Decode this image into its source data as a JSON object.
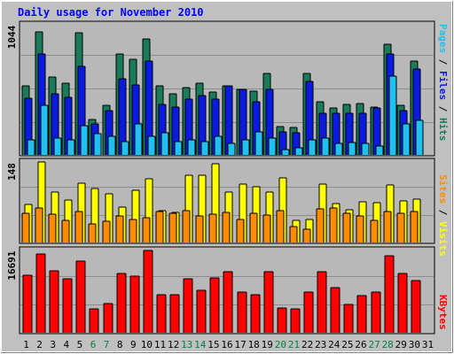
{
  "chart_data": {
    "type": "bar",
    "title": "Daily usage for November 2010",
    "categories": [
      "1",
      "2",
      "3",
      "4",
      "5",
      "6",
      "7",
      "8",
      "9",
      "10",
      "11",
      "12",
      "13",
      "14",
      "15",
      "16",
      "17",
      "18",
      "19",
      "20",
      "21",
      "22",
      "23",
      "24",
      "25",
      "26",
      "27",
      "28",
      "29",
      "30",
      "31"
    ],
    "weekend_days": [
      "6",
      "7",
      "13",
      "14",
      "20",
      "21",
      "27",
      "28"
    ],
    "panels": [
      {
        "id": "hits",
        "max_label": "1044",
        "ylim": [
          0,
          1044
        ],
        "legend": [
          "Pages",
          "Files",
          "Hits"
        ],
        "series": [
          {
            "name": "Hits",
            "color": "#1a7a5a",
            "values": [
              560,
              1000,
              630,
              580,
              990,
              290,
              400,
              820,
              780,
              940,
              560,
              500,
              550,
              580,
              510,
              560,
              530,
              520,
              660,
              230,
              220,
              660,
              430,
              380,
              410,
              420,
              390,
              900,
              400,
              760
            ]
          },
          {
            "name": "Files",
            "color": "#0a1ae0",
            "values": [
              460,
              820,
              500,
              470,
              720,
              250,
              360,
              620,
              570,
              760,
              410,
              390,
              450,
              480,
              450,
              560,
              530,
              430,
              530,
              190,
              180,
              600,
              340,
              340,
              340,
              340,
              380,
              820,
              360,
              700
            ]
          },
          {
            "name": "Pages",
            "color": "#20c0f0",
            "values": [
              120,
              400,
              140,
              120,
              240,
              170,
              150,
              110,
              250,
              150,
              180,
              110,
              120,
              110,
              150,
              90,
              120,
              190,
              140,
              40,
              60,
              120,
              140,
              90,
              100,
              90,
              70,
              640,
              250,
              280
            ]
          }
        ]
      },
      {
        "id": "visits",
        "max_label": "148",
        "ylim": [
          0,
          148
        ],
        "legend": [
          "Sites",
          "Visits"
        ],
        "series": [
          {
            "name": "Visits",
            "color": "#ffff00",
            "values": [
              70,
              148,
              92,
              78,
              109,
              100,
              90,
              65,
              96,
              117,
              58,
              55,
              124,
              123,
              144,
              92,
              107,
              103,
              93,
              118,
              40,
              42,
              108,
              72,
              60,
              75,
              73,
              106,
              77,
              79
            ]
          },
          {
            "name": "Sites",
            "color": "#ff8c00",
            "values": [
              54,
              63,
              52,
              41,
              57,
              34,
              39,
              49,
              43,
              45,
              57,
              54,
              59,
              49,
              52,
              55,
              43,
              53,
              50,
              59,
              29,
              25,
              61,
              64,
              53,
              48,
              40,
              57,
              54,
              57
            ]
          }
        ]
      },
      {
        "id": "kbytes",
        "max_label": "16691",
        "ylim": [
          0,
          16691
        ],
        "legend": [
          "KBytes"
        ],
        "series": [
          {
            "name": "KBytes",
            "color": "#ff0000",
            "values": [
              11600,
              16000,
              12600,
              10900,
              14500,
              4900,
              5900,
              12100,
              11500,
              16691,
              7800,
              7700,
              10900,
              8700,
              11200,
              12400,
              8200,
              7700,
              12300,
              5000,
              4900,
              8300,
              12300,
              9200,
              5700,
              7600,
              8200,
              15700,
              12000,
              10600
            ]
          }
        ]
      }
    ]
  }
}
